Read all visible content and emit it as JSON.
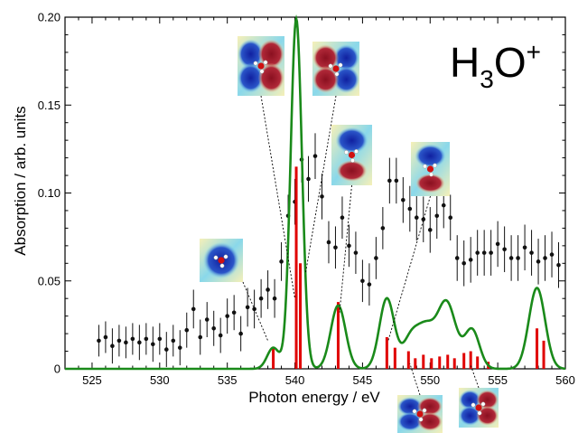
{
  "chart_data": {
    "type": "scatter",
    "title": "",
    "annotation": {
      "species": "H",
      "sub": "3",
      "mid": "O",
      "sup": "+"
    },
    "xlabel": "Photon energy / eV",
    "ylabel": "Absorption / arb. units",
    "xlim": [
      523,
      560
    ],
    "ylim": [
      0,
      0.2
    ],
    "xticks": [
      525,
      530,
      535,
      540,
      545,
      550,
      555,
      560
    ],
    "yticks": [
      0,
      0.05,
      0.1,
      0.15,
      0.2
    ],
    "ytick_labels": [
      "0",
      "0.05",
      "0.10",
      "0.15",
      "0.20"
    ],
    "grid": false,
    "legend": "none",
    "colors": {
      "experiment": "#111111",
      "theory": "#1a8a1a",
      "sticks": "#e00000"
    },
    "series": [
      {
        "kind": "experiment-points-with-errorbars",
        "points": [
          [
            525.5,
            0.016,
            0.009
          ],
          [
            526.0,
            0.018,
            0.009
          ],
          [
            526.5,
            0.013,
            0.01
          ],
          [
            527.0,
            0.016,
            0.009
          ],
          [
            527.5,
            0.015,
            0.009
          ],
          [
            528.0,
            0.017,
            0.009
          ],
          [
            528.5,
            0.015,
            0.01
          ],
          [
            529.0,
            0.017,
            0.009
          ],
          [
            529.5,
            0.014,
            0.01
          ],
          [
            530.0,
            0.017,
            0.009
          ],
          [
            530.5,
            0.011,
            0.01
          ],
          [
            531.0,
            0.016,
            0.009
          ],
          [
            531.5,
            0.012,
            0.01
          ],
          [
            532.0,
            0.022,
            0.01
          ],
          [
            532.5,
            0.034,
            0.011
          ],
          [
            533.0,
            0.018,
            0.01
          ],
          [
            533.5,
            0.028,
            0.01
          ],
          [
            534.0,
            0.023,
            0.01
          ],
          [
            534.5,
            0.019,
            0.01
          ],
          [
            535.0,
            0.03,
            0.01
          ],
          [
            535.5,
            0.032,
            0.01
          ],
          [
            536.0,
            0.02,
            0.01
          ],
          [
            536.5,
            0.035,
            0.011
          ],
          [
            537.0,
            0.034,
            0.011
          ],
          [
            537.5,
            0.04,
            0.011
          ],
          [
            538.0,
            0.045,
            0.011
          ],
          [
            538.5,
            0.04,
            0.011
          ],
          [
            539.0,
            0.061,
            0.011
          ],
          [
            539.5,
            0.087,
            0.012
          ],
          [
            540.0,
            0.095,
            0.013
          ],
          [
            540.5,
            0.119,
            0.013
          ],
          [
            541.0,
            0.108,
            0.013
          ],
          [
            541.5,
            0.121,
            0.013
          ],
          [
            542.0,
            0.098,
            0.013
          ],
          [
            542.5,
            0.072,
            0.012
          ],
          [
            543.0,
            0.069,
            0.012
          ],
          [
            543.5,
            0.086,
            0.012
          ],
          [
            544.0,
            0.07,
            0.012
          ],
          [
            544.5,
            0.066,
            0.012
          ],
          [
            545.0,
            0.05,
            0.012
          ],
          [
            545.5,
            0.048,
            0.012
          ],
          [
            546.0,
            0.063,
            0.012
          ],
          [
            546.5,
            0.08,
            0.012
          ],
          [
            547.0,
            0.107,
            0.013
          ],
          [
            547.5,
            0.107,
            0.013
          ],
          [
            548.0,
            0.096,
            0.013
          ],
          [
            548.5,
            0.091,
            0.013
          ],
          [
            549.0,
            0.086,
            0.013
          ],
          [
            549.5,
            0.085,
            0.013
          ],
          [
            550.0,
            0.079,
            0.013
          ],
          [
            550.5,
            0.087,
            0.013
          ],
          [
            551.0,
            0.093,
            0.013
          ],
          [
            551.5,
            0.086,
            0.013
          ],
          [
            552.0,
            0.063,
            0.013
          ],
          [
            552.5,
            0.06,
            0.013
          ],
          [
            553.0,
            0.062,
            0.013
          ],
          [
            553.5,
            0.066,
            0.013
          ],
          [
            554.0,
            0.066,
            0.013
          ],
          [
            554.5,
            0.066,
            0.013
          ],
          [
            555.0,
            0.071,
            0.013
          ],
          [
            555.5,
            0.068,
            0.013
          ],
          [
            556.0,
            0.063,
            0.013
          ],
          [
            556.5,
            0.063,
            0.013
          ],
          [
            557.0,
            0.069,
            0.013
          ],
          [
            557.5,
            0.066,
            0.013
          ],
          [
            558.0,
            0.061,
            0.013
          ],
          [
            558.5,
            0.063,
            0.013
          ],
          [
            559.0,
            0.065,
            0.013
          ],
          [
            559.5,
            0.059,
            0.013
          ]
        ]
      },
      {
        "kind": "theory-stick-spectrum",
        "sticks": [
          [
            538.4,
            0.012
          ],
          [
            540.1,
            0.115
          ],
          [
            540.4,
            0.06
          ],
          [
            543.2,
            0.038
          ],
          [
            546.8,
            0.018
          ],
          [
            547.4,
            0.012
          ],
          [
            548.4,
            0.01
          ],
          [
            548.9,
            0.006
          ],
          [
            549.5,
            0.008
          ],
          [
            550.1,
            0.006
          ],
          [
            550.7,
            0.007
          ],
          [
            551.3,
            0.008
          ],
          [
            551.8,
            0.006
          ],
          [
            552.5,
            0.009
          ],
          [
            553.0,
            0.01
          ],
          [
            553.5,
            0.007
          ],
          [
            554.3,
            0.004
          ],
          [
            557.9,
            0.023
          ],
          [
            558.4,
            0.016
          ]
        ]
      },
      {
        "kind": "theory-broadened-curve",
        "peaks": [
          [
            538.4,
            0.012,
            0.45
          ],
          [
            540.1,
            0.199,
            0.42
          ],
          [
            543.2,
            0.036,
            0.55
          ],
          [
            546.8,
            0.04,
            0.55
          ],
          [
            548.6,
            0.018,
            0.6
          ],
          [
            549.7,
            0.02,
            0.6
          ],
          [
            551.2,
            0.038,
            0.7
          ],
          [
            553.1,
            0.022,
            0.55
          ],
          [
            557.9,
            0.046,
            0.6
          ]
        ]
      }
    ],
    "orbital_insets": [
      {
        "anchor": [
          538.0,
          0.016
        ],
        "label_pos": "left",
        "orientation": "round"
      },
      {
        "anchor": [
          540.0,
          0.04
        ],
        "label_pos": "top",
        "orientation": "horizontal-left"
      },
      {
        "anchor": [
          540.8,
          0.055
        ],
        "label_pos": "top",
        "orientation": "horizontal-right"
      },
      {
        "anchor": [
          543.3,
          0.032
        ],
        "label_pos": "top",
        "orientation": "vertical"
      },
      {
        "anchor": [
          546.9,
          0.016
        ],
        "label_pos": "right",
        "orientation": "vertical-small"
      },
      {
        "anchor": [
          548.5,
          0.003
        ],
        "label_pos": "bottom",
        "orientation": "horizontal-small"
      },
      {
        "anchor": [
          553.0,
          0.002
        ],
        "label_pos": "bottom",
        "orientation": "horizontal-small"
      }
    ]
  }
}
